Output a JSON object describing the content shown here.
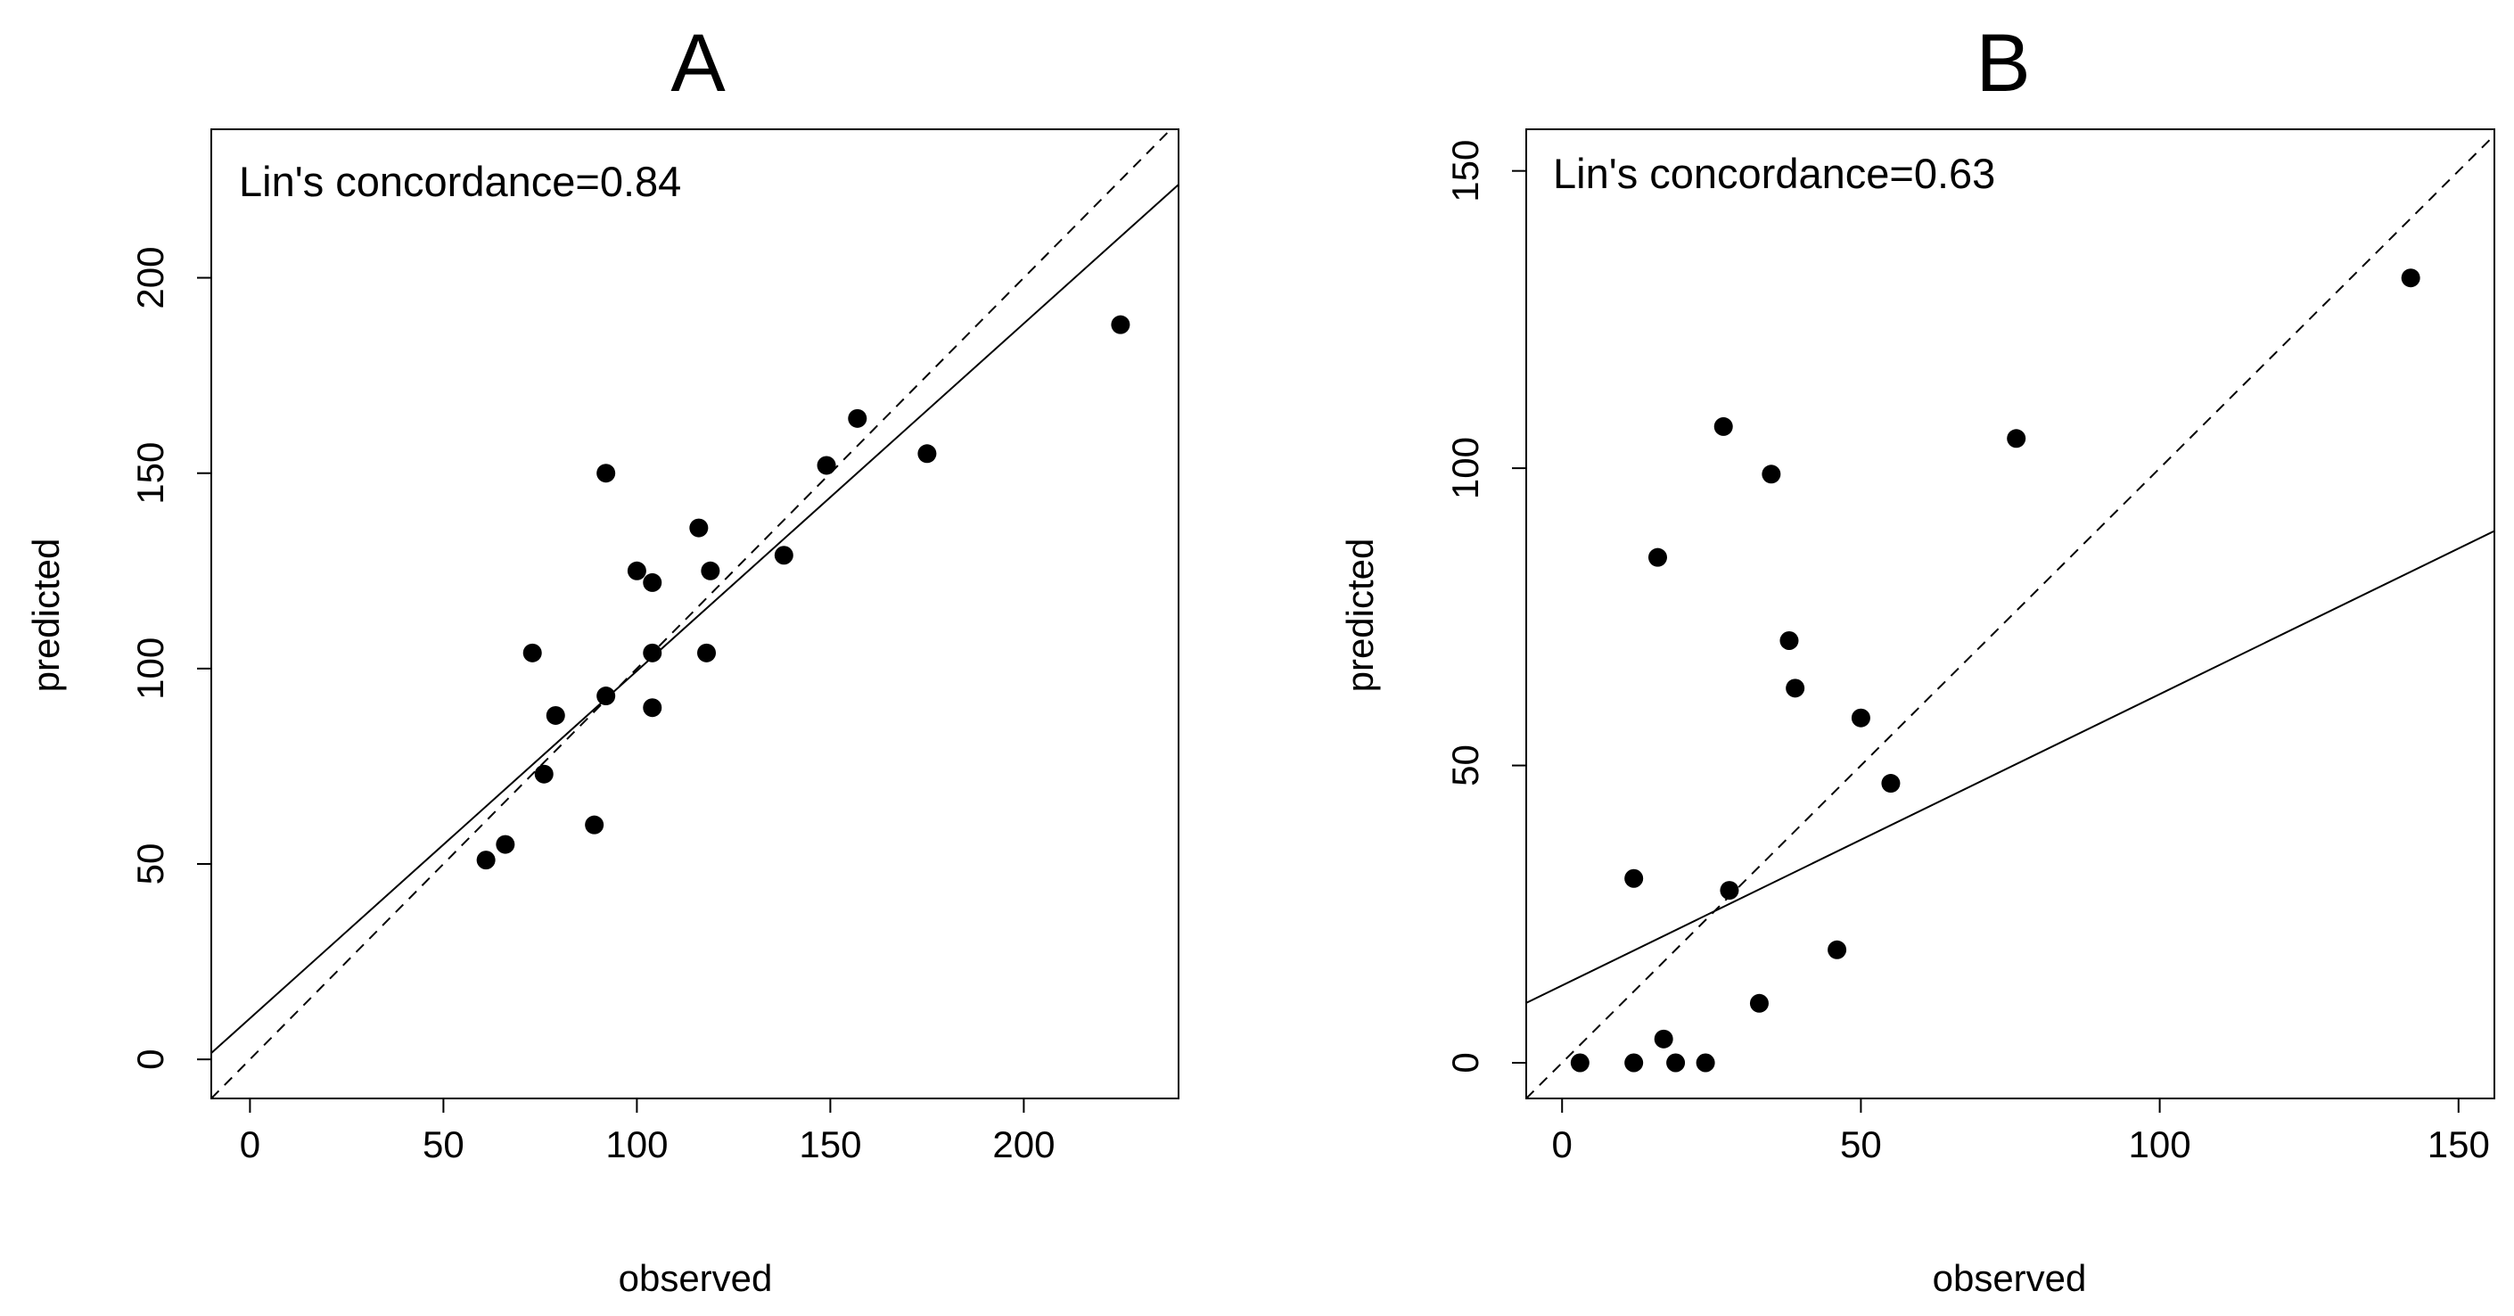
{
  "chart_data": [
    {
      "type": "scatter",
      "panel": "A",
      "title": "A",
      "annotation": "Lin's concordance=0.84",
      "xlabel": "observed",
      "ylabel": "predicted",
      "xlim": [
        -10,
        240
      ],
      "ylim": [
        -10,
        238
      ],
      "xticks": [
        0,
        50,
        100,
        150,
        200
      ],
      "xtick_labels": [
        "0",
        "50",
        "100",
        "150",
        "200"
      ],
      "yticks": [
        0,
        50,
        100,
        150,
        200
      ],
      "ytick_labels": [
        "0",
        "50",
        "100",
        "150",
        "200"
      ],
      "points": [
        {
          "x": 61,
          "y": 51
        },
        {
          "x": 66,
          "y": 55
        },
        {
          "x": 73,
          "y": 104
        },
        {
          "x": 76,
          "y": 73
        },
        {
          "x": 79,
          "y": 88
        },
        {
          "x": 89,
          "y": 60
        },
        {
          "x": 92,
          "y": 150
        },
        {
          "x": 92,
          "y": 93
        },
        {
          "x": 100,
          "y": 125
        },
        {
          "x": 104,
          "y": 122
        },
        {
          "x": 104,
          "y": 104
        },
        {
          "x": 104,
          "y": 90
        },
        {
          "x": 116,
          "y": 136
        },
        {
          "x": 118,
          "y": 104
        },
        {
          "x": 119,
          "y": 125
        },
        {
          "x": 138,
          "y": 129
        },
        {
          "x": 149,
          "y": 152
        },
        {
          "x": 157,
          "y": 164
        },
        {
          "x": 175,
          "y": 155
        },
        {
          "x": 225,
          "y": 188
        }
      ],
      "identity_line": true,
      "fit_line": {
        "intercept": 10.5,
        "slope": 0.889
      }
    },
    {
      "type": "scatter",
      "panel": "B",
      "title": "B",
      "annotation": "Lin's concordance=0.63",
      "xlabel": "observed",
      "ylabel": "predicted",
      "xlim": [
        -6,
        156
      ],
      "ylim": [
        -6,
        157
      ],
      "xticks": [
        0,
        50,
        100,
        150
      ],
      "xtick_labels": [
        "0",
        "50",
        "100",
        "150"
      ],
      "yticks": [
        0,
        50,
        100,
        150
      ],
      "ytick_labels": [
        "0",
        "50",
        "100",
        "150"
      ],
      "points": [
        {
          "x": 3,
          "y": 0
        },
        {
          "x": 12,
          "y": 0
        },
        {
          "x": 12,
          "y": 31
        },
        {
          "x": 16,
          "y": 85
        },
        {
          "x": 17,
          "y": 4
        },
        {
          "x": 19,
          "y": 0
        },
        {
          "x": 24,
          "y": 0
        },
        {
          "x": 27,
          "y": 107
        },
        {
          "x": 28,
          "y": 29
        },
        {
          "x": 33,
          "y": 10
        },
        {
          "x": 35,
          "y": 99
        },
        {
          "x": 38,
          "y": 71
        },
        {
          "x": 39,
          "y": 63
        },
        {
          "x": 46,
          "y": 19
        },
        {
          "x": 50,
          "y": 58
        },
        {
          "x": 55,
          "y": 47
        },
        {
          "x": 76,
          "y": 105
        },
        {
          "x": 142,
          "y": 132
        }
      ],
      "identity_line": true,
      "fit_line": {
        "intercept": 13,
        "slope": 0.49
      }
    }
  ]
}
